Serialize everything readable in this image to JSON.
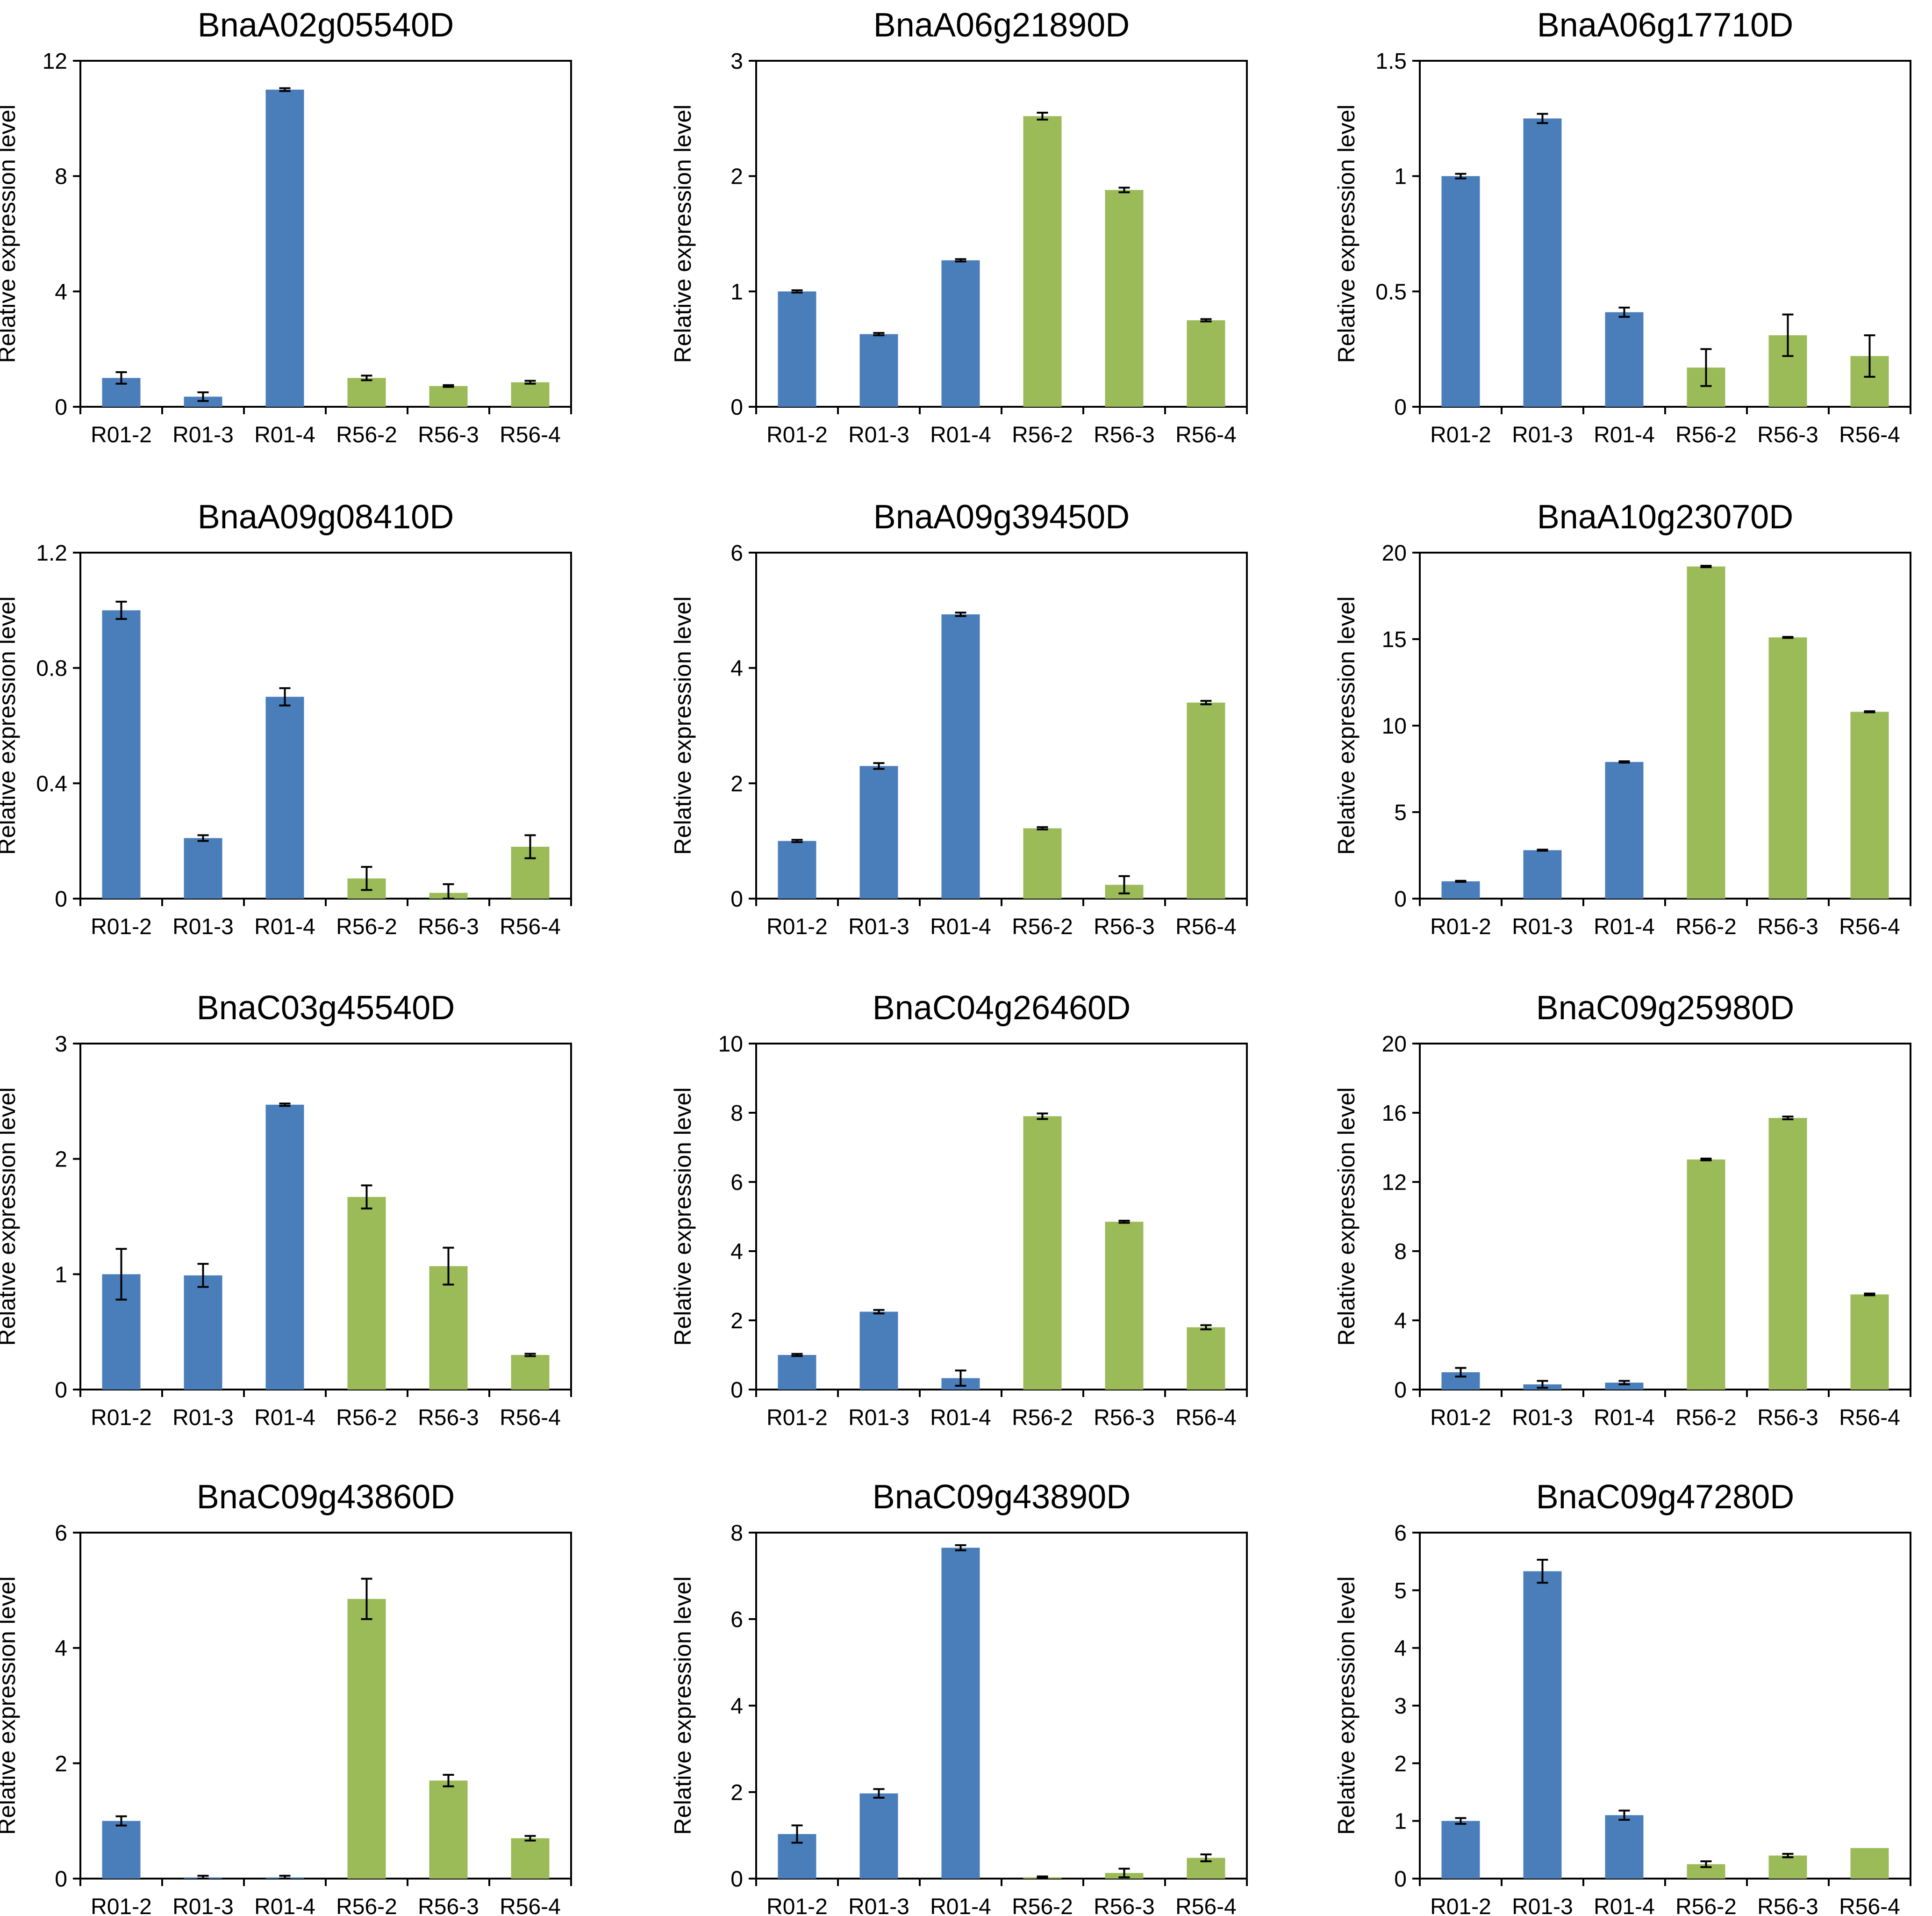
{
  "figure": {
    "colors": {
      "R01": "#4a7ebb",
      "R56": "#9bbb59",
      "axis": "#000000",
      "error_bar": "#000000"
    }
  },
  "chart_data": [
    {
      "type": "bar",
      "title": "BnaA02g05540D",
      "xlabel": "",
      "ylabel": "Relative expression level",
      "ylim": [
        0,
        12
      ],
      "yticks": [
        "0",
        "4",
        "8",
        "12"
      ],
      "categories": [
        "R01-2",
        "R01-3",
        "R01-4",
        "R56-2",
        "R56-3",
        "R56-4"
      ],
      "groups": [
        "R01",
        "R01",
        "R01",
        "R56",
        "R56",
        "R56"
      ],
      "values": [
        1.0,
        0.35,
        11.0,
        1.0,
        0.72,
        0.85
      ],
      "errors": [
        0.2,
        0.15,
        0.05,
        0.08,
        0.03,
        0.05
      ]
    },
    {
      "type": "bar",
      "title": "BnaA06g21890D",
      "xlabel": "",
      "ylabel": "Relative expression level",
      "ylim": [
        0,
        3
      ],
      "yticks": [
        "0",
        "1",
        "2",
        "3"
      ],
      "categories": [
        "R01-2",
        "R01-3",
        "R01-4",
        "R56-2",
        "R56-3",
        "R56-4"
      ],
      "groups": [
        "R01",
        "R01",
        "R01",
        "R56",
        "R56",
        "R56"
      ],
      "values": [
        1.0,
        0.63,
        1.27,
        2.52,
        1.88,
        0.75
      ],
      "errors": [
        0.01,
        0.01,
        0.01,
        0.03,
        0.02,
        0.01
      ]
    },
    {
      "type": "bar",
      "title": "BnaA06g17710D",
      "xlabel": "",
      "ylabel": "Relative expression level",
      "ylim": [
        0,
        1.5
      ],
      "yticks": [
        "0",
        "0.5",
        "1",
        "1.5"
      ],
      "categories": [
        "R01-2",
        "R01-3",
        "R01-4",
        "R56-2",
        "R56-3",
        "R56-4"
      ],
      "groups": [
        "R01",
        "R01",
        "R01",
        "R56",
        "R56",
        "R56"
      ],
      "values": [
        1.0,
        1.25,
        0.41,
        0.17,
        0.31,
        0.22
      ],
      "errors": [
        0.01,
        0.02,
        0.02,
        0.08,
        0.09,
        0.09
      ]
    },
    {
      "type": "bar",
      "title": "BnaA09g08410D",
      "xlabel": "",
      "ylabel": "Relative expression level",
      "ylim": [
        0,
        1.2
      ],
      "yticks": [
        "0",
        "0.4",
        "0.8",
        "1.2"
      ],
      "categories": [
        "R01-2",
        "R01-3",
        "R01-4",
        "R56-2",
        "R56-3",
        "R56-4"
      ],
      "groups": [
        "R01",
        "R01",
        "R01",
        "R56",
        "R56",
        "R56"
      ],
      "values": [
        1.0,
        0.21,
        0.7,
        0.07,
        0.02,
        0.18
      ],
      "errors": [
        0.03,
        0.01,
        0.03,
        0.04,
        0.03,
        0.04
      ]
    },
    {
      "type": "bar",
      "title": "BnaA09g39450D",
      "xlabel": "",
      "ylabel": "Relative expression level",
      "ylim": [
        0,
        6
      ],
      "yticks": [
        "0",
        "2",
        "4",
        "6"
      ],
      "categories": [
        "R01-2",
        "R01-3",
        "R01-4",
        "R56-2",
        "R56-3",
        "R56-4"
      ],
      "groups": [
        "R01",
        "R01",
        "R01",
        "R56",
        "R56",
        "R56"
      ],
      "values": [
        1.0,
        2.3,
        4.93,
        1.22,
        0.24,
        3.4
      ],
      "errors": [
        0.02,
        0.05,
        0.03,
        0.02,
        0.15,
        0.03
      ]
    },
    {
      "type": "bar",
      "title": "BnaA10g23070D",
      "xlabel": "",
      "ylabel": "Relative expression level",
      "ylim": [
        0,
        20
      ],
      "yticks": [
        "0",
        "5",
        "10",
        "15",
        "20"
      ],
      "categories": [
        "R01-2",
        "R01-3",
        "R01-4",
        "R56-2",
        "R56-3",
        "R56-4"
      ],
      "groups": [
        "R01",
        "R01",
        "R01",
        "R56",
        "R56",
        "R56"
      ],
      "values": [
        1.0,
        2.8,
        7.9,
        19.2,
        15.1,
        10.8
      ],
      "errors": [
        0.03,
        0.03,
        0.04,
        0.04,
        0.03,
        0.03
      ]
    },
    {
      "type": "bar",
      "title": "BnaC03g45540D",
      "xlabel": "",
      "ylabel": "Relative expression level",
      "ylim": [
        0,
        3
      ],
      "yticks": [
        "0",
        "1",
        "2",
        "3"
      ],
      "categories": [
        "R01-2",
        "R01-3",
        "R01-4",
        "R56-2",
        "R56-3",
        "R56-4"
      ],
      "groups": [
        "R01",
        "R01",
        "R01",
        "R56",
        "R56",
        "R56"
      ],
      "values": [
        1.0,
        0.99,
        2.47,
        1.67,
        1.07,
        0.3
      ],
      "errors": [
        0.22,
        0.1,
        0.01,
        0.1,
        0.16,
        0.01
      ]
    },
    {
      "type": "bar",
      "title": "BnaC04g26460D",
      "xlabel": "",
      "ylabel": "Relative expression level",
      "ylim": [
        0,
        10
      ],
      "yticks": [
        "0",
        "2",
        "4",
        "6",
        "8",
        "10"
      ],
      "categories": [
        "R01-2",
        "R01-3",
        "R01-4",
        "R56-2",
        "R56-3",
        "R56-4"
      ],
      "groups": [
        "R01",
        "R01",
        "R01",
        "R56",
        "R56",
        "R56"
      ],
      "values": [
        1.0,
        2.25,
        0.33,
        7.9,
        4.85,
        1.8
      ],
      "errors": [
        0.03,
        0.05,
        0.22,
        0.08,
        0.03,
        0.06
      ]
    },
    {
      "type": "bar",
      "title": "BnaC09g25980D",
      "xlabel": "",
      "ylabel": "Relative expression level",
      "ylim": [
        0,
        20
      ],
      "yticks": [
        "0",
        "4",
        "8",
        "12",
        "16",
        "20"
      ],
      "categories": [
        "R01-2",
        "R01-3",
        "R01-4",
        "R56-2",
        "R56-3",
        "R56-4"
      ],
      "groups": [
        "R01",
        "R01",
        "R01",
        "R56",
        "R56",
        "R56"
      ],
      "values": [
        1.0,
        0.3,
        0.4,
        13.3,
        15.7,
        5.5
      ],
      "errors": [
        0.25,
        0.2,
        0.1,
        0.05,
        0.08,
        0.05
      ]
    },
    {
      "type": "bar",
      "title": "BnaC09g43860D",
      "xlabel": "",
      "ylabel": "Relative expression level",
      "ylim": [
        0,
        6
      ],
      "yticks": [
        "0",
        "2",
        "4",
        "6"
      ],
      "categories": [
        "R01-2",
        "R01-3",
        "R01-4",
        "R56-2",
        "R56-3",
        "R56-4"
      ],
      "groups": [
        "R01",
        "R01",
        "R01",
        "R56",
        "R56",
        "R56"
      ],
      "values": [
        1.0,
        0.02,
        0.02,
        4.85,
        1.7,
        0.7
      ],
      "errors": [
        0.08,
        0.03,
        0.03,
        0.35,
        0.1,
        0.04
      ]
    },
    {
      "type": "bar",
      "title": "BnaC09g43890D",
      "xlabel": "",
      "ylabel": "Relative expression level",
      "ylim": [
        0,
        8
      ],
      "yticks": [
        "0",
        "2",
        "4",
        "6",
        "8"
      ],
      "categories": [
        "R01-2",
        "R01-3",
        "R01-4",
        "R56-2",
        "R56-3",
        "R56-4"
      ],
      "groups": [
        "R01",
        "R01",
        "R01",
        "R56",
        "R56",
        "R56"
      ],
      "values": [
        1.03,
        1.97,
        7.65,
        0.03,
        0.13,
        0.48
      ],
      "errors": [
        0.2,
        0.1,
        0.06,
        0.02,
        0.1,
        0.08
      ]
    },
    {
      "type": "bar",
      "title": "BnaC09g47280D",
      "xlabel": "",
      "ylabel": "Relative expression level",
      "ylim": [
        0,
        6
      ],
      "yticks": [
        "0",
        "1",
        "2",
        "3",
        "4",
        "5",
        "6"
      ],
      "categories": [
        "R01-2",
        "R01-3",
        "R01-4",
        "R56-2",
        "R56-3",
        "R56-4"
      ],
      "groups": [
        "R01",
        "R01",
        "R01",
        "R56",
        "R56",
        "R56"
      ],
      "values": [
        1.0,
        5.33,
        1.1,
        0.25,
        0.4,
        0.53
      ],
      "errors": [
        0.05,
        0.2,
        0.08,
        0.05,
        0.03,
        0.0
      ]
    }
  ]
}
